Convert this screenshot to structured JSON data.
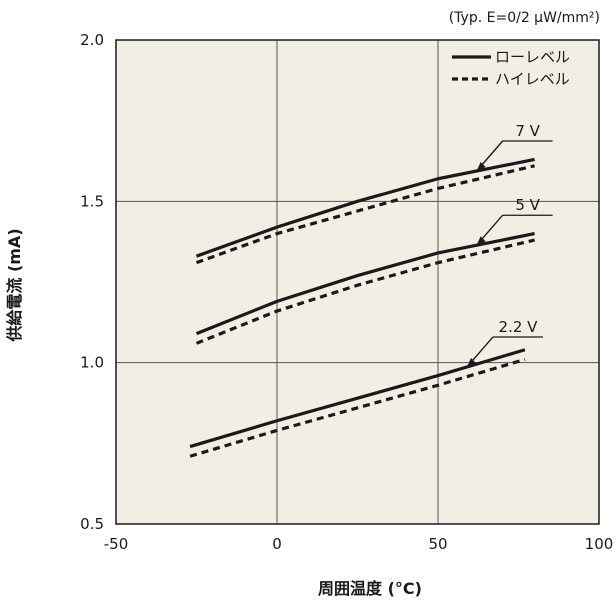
{
  "chart_data": {
    "type": "line",
    "title": "",
    "note": "(Typ. E=0/2 μW/mm²)",
    "xlabel": "周囲温度 (°C)",
    "ylabel": "供給電流 (mA)",
    "xlim": [
      -50,
      100
    ],
    "ylim": [
      0.5,
      2.0
    ],
    "xticks": [
      "-50",
      "0",
      "50",
      "100"
    ],
    "yticks": [
      "0.5",
      "1.0",
      "1.5",
      "2.0"
    ],
    "grid": true,
    "plot_background": "#f1efe4",
    "legend_position": "top-right",
    "legend": [
      {
        "label": "ローレベル",
        "style": "solid"
      },
      {
        "label": "ハイレベル",
        "style": "dashed"
      }
    ],
    "groups": [
      {
        "label": "7 V",
        "series": [
          {
            "level": "ローレベル",
            "style": "solid",
            "x": [
              -25,
              0,
              25,
              50,
              80
            ],
            "y": [
              1.33,
              1.42,
              1.5,
              1.57,
              1.63
            ]
          },
          {
            "level": "ハイレベル",
            "style": "dashed",
            "x": [
              -25,
              0,
              25,
              50,
              80
            ],
            "y": [
              1.31,
              1.4,
              1.47,
              1.54,
              1.61
            ]
          }
        ]
      },
      {
        "label": "5 V",
        "series": [
          {
            "level": "ローレベル",
            "style": "solid",
            "x": [
              -25,
              0,
              25,
              50,
              80
            ],
            "y": [
              1.09,
              1.19,
              1.27,
              1.34,
              1.4
            ]
          },
          {
            "level": "ハイレベル",
            "style": "dashed",
            "x": [
              -25,
              0,
              25,
              50,
              80
            ],
            "y": [
              1.06,
              1.16,
              1.24,
              1.31,
              1.38
            ]
          }
        ]
      },
      {
        "label": "2.2 V",
        "series": [
          {
            "level": "ローレベル",
            "style": "solid",
            "x": [
              -27,
              0,
              25,
              50,
              77
            ],
            "y": [
              0.74,
              0.82,
              0.89,
              0.96,
              1.04
            ]
          },
          {
            "level": "ハイレベル",
            "style": "dashed",
            "x": [
              -27,
              0,
              25,
              50,
              77
            ],
            "y": [
              0.71,
              0.79,
              0.86,
              0.93,
              1.01
            ]
          }
        ]
      }
    ]
  }
}
